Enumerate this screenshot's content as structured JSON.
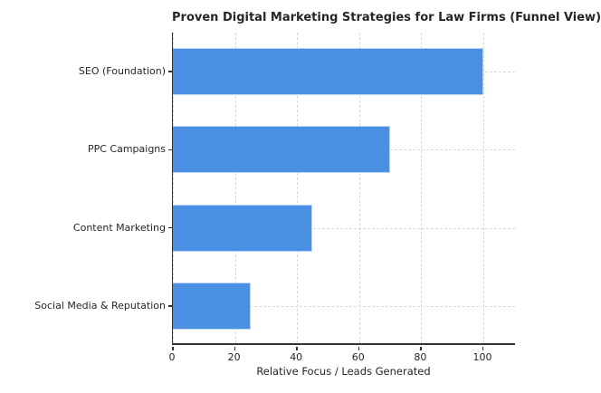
{
  "chart_data": {
    "type": "bar",
    "orientation": "horizontal",
    "title": "Proven Digital Marketing Strategies for Law Firms (Funnel View)",
    "categories": [
      "SEO (Foundation)",
      "PPC Campaigns",
      "Content Marketing",
      "Social Media & Reputation"
    ],
    "values": [
      100,
      70,
      45,
      25
    ],
    "xlabel": "Relative Focus / Leads Generated",
    "ylabel": "",
    "xlim": [
      0,
      110.5
    ],
    "xticks": [
      0,
      20,
      40,
      60,
      80,
      100
    ],
    "grid": true,
    "legend": "none",
    "colors": {
      "bar_fill": "#4a90e2",
      "bar_edge": "#bcd4f0",
      "grid": "#d9d9d9",
      "spine": "#333333",
      "text": "#262626"
    }
  }
}
